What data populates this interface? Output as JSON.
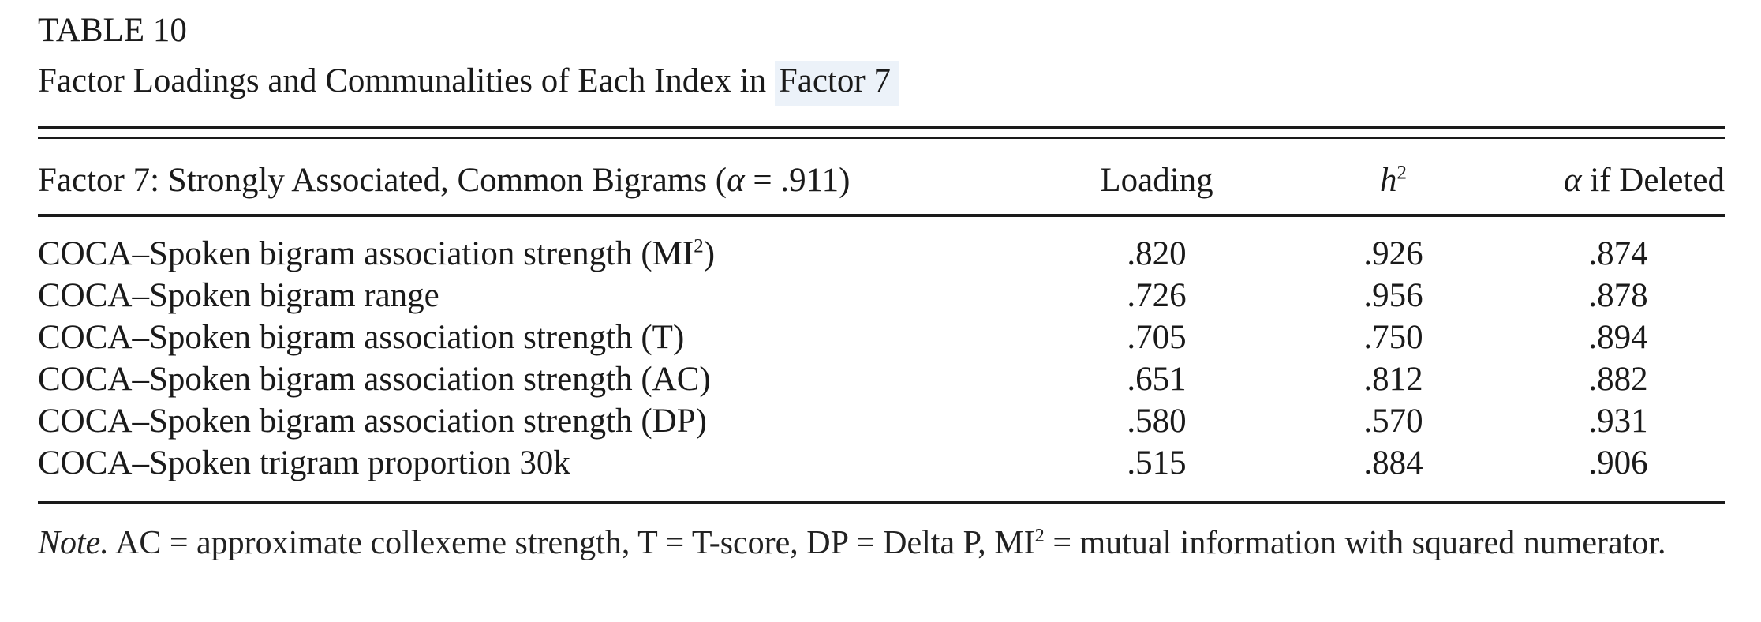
{
  "page": {
    "background_color": "#ffffff",
    "text_color": "#1a1a1a",
    "highlight_color": "#ecf2f9"
  },
  "table": {
    "label": "TABLE 10",
    "caption_prefix": "Factor Loadings and Communalities of Each Index in ",
    "caption_highlight": "Factor 7",
    "header": {
      "factor_prefix": "Factor 7: Strongly Associated, Common Bigrams (",
      "factor_alpha": "α",
      "factor_suffix": " = .911)",
      "loading": "Loading",
      "h_symbol": "h",
      "h_sup": "2",
      "alpha_symbol": "α",
      "alpha_rest": " if Deleted"
    },
    "rows": [
      {
        "label_prefix": "COCA–Spoken bigram association strength (MI",
        "label_sup": "2",
        "label_suffix": ")",
        "loading": ".820",
        "h2": ".926",
        "alpha_if_deleted": ".874"
      },
      {
        "label_prefix": "COCA–Spoken bigram range",
        "label_sup": "",
        "label_suffix": "",
        "loading": ".726",
        "h2": ".956",
        "alpha_if_deleted": ".878"
      },
      {
        "label_prefix": "COCA–Spoken bigram association strength (T)",
        "label_sup": "",
        "label_suffix": "",
        "loading": ".705",
        "h2": ".750",
        "alpha_if_deleted": ".894"
      },
      {
        "label_prefix": "COCA–Spoken bigram association strength (AC)",
        "label_sup": "",
        "label_suffix": "",
        "loading": ".651",
        "h2": ".812",
        "alpha_if_deleted": ".882"
      },
      {
        "label_prefix": "COCA–Spoken bigram association strength (DP)",
        "label_sup": "",
        "label_suffix": "",
        "loading": ".580",
        "h2": ".570",
        "alpha_if_deleted": ".931"
      },
      {
        "label_prefix": "COCA–Spoken trigram proportion 30k",
        "label_sup": "",
        "label_suffix": "",
        "loading": ".515",
        "h2": ".884",
        "alpha_if_deleted": ".906"
      }
    ]
  },
  "note": {
    "label": "Note.",
    "body_prefix": " AC = approximate collexeme strength, T = T-score, DP = Delta P, MI",
    "sup": "2",
    "body_suffix": " = mutual information with squared numerator."
  }
}
